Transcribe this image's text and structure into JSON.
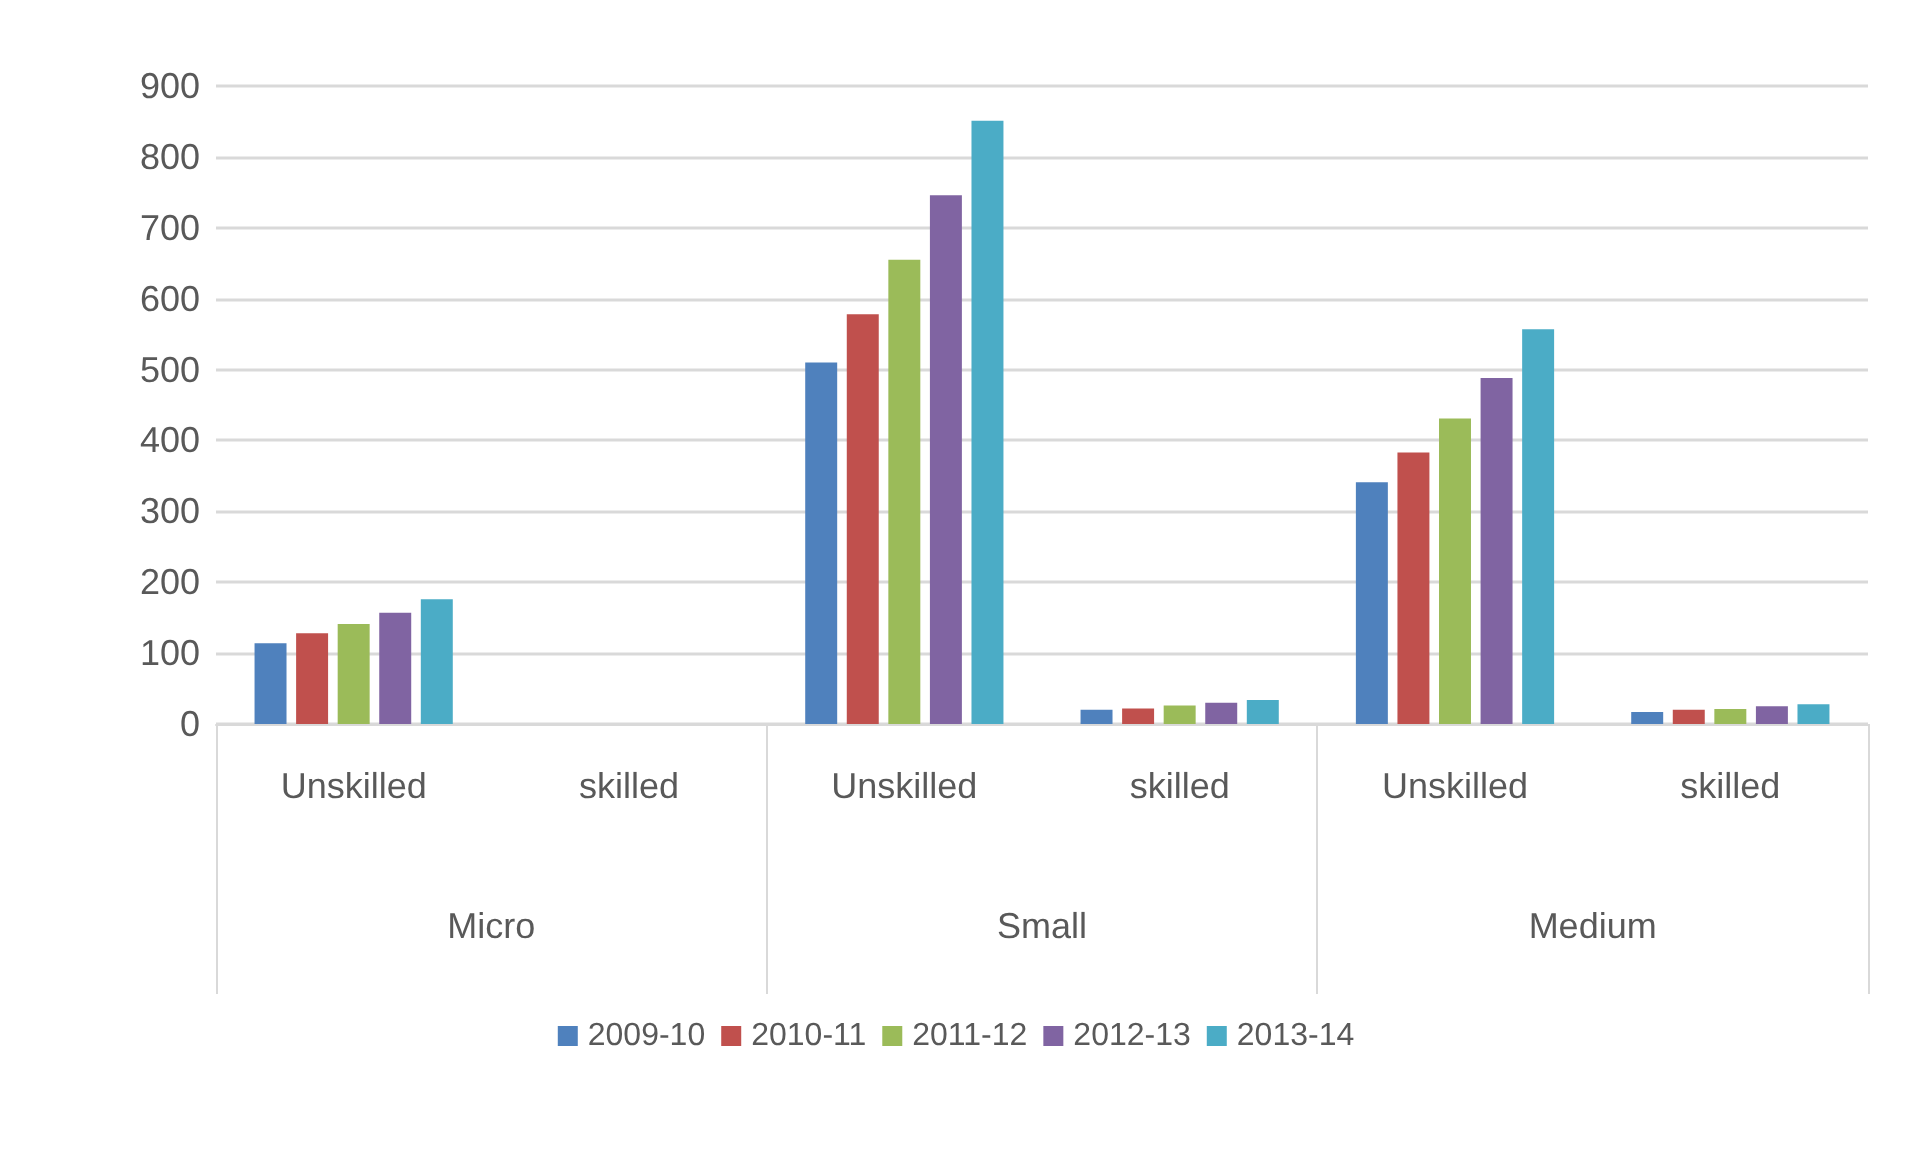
{
  "chart_data": {
    "type": "bar",
    "categories": [
      "Unskilled",
      "skilled",
      "Unskilled",
      "skilled",
      "Unskilled",
      "skilled"
    ],
    "annotations": [
      "Micro",
      "Small",
      "Medium"
    ],
    "series": [
      {
        "name": "2009-10",
        "color": "#4f81bd",
        "values": [
          114,
          null,
          510,
          20,
          341,
          17
        ]
      },
      {
        "name": "2010-11",
        "color": "#c0504d",
        "values": [
          128,
          null,
          578,
          22,
          383,
          20
        ]
      },
      {
        "name": "2011-12",
        "color": "#9bbb59",
        "values": [
          141,
          null,
          655,
          26,
          431,
          21
        ]
      },
      {
        "name": "2012-13",
        "color": "#8064a2",
        "values": [
          157,
          null,
          746,
          30,
          488,
          25
        ]
      },
      {
        "name": "2013-14",
        "color": "#4bacc6",
        "values": [
          176,
          null,
          851,
          34,
          557,
          28
        ]
      }
    ],
    "ylim": [
      0,
      900
    ],
    "yticks": [
      0,
      100,
      200,
      300,
      400,
      500,
      600,
      700,
      800,
      900
    ],
    "grid": "y",
    "legend": "bottom"
  }
}
